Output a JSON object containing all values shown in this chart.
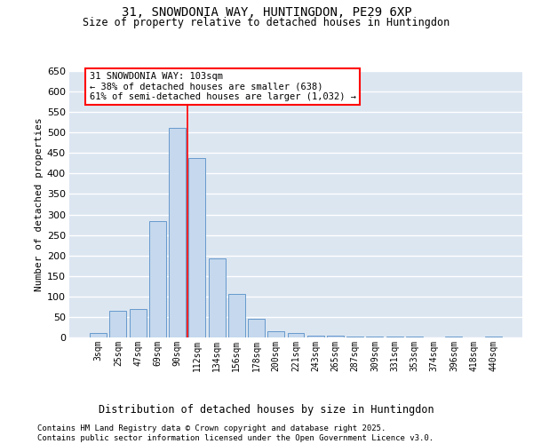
{
  "title": "31, SNOWDONIA WAY, HUNTINGDON, PE29 6XP",
  "subtitle": "Size of property relative to detached houses in Huntingdon",
  "xlabel": "Distribution of detached houses by size in Huntingdon",
  "ylabel": "Number of detached properties",
  "bar_color": "#c5d8ed",
  "bar_edge_color": "#6699cc",
  "background_color": "#dce6f1",
  "grid_color": "#ffffff",
  "categories": [
    "3sqm",
    "25sqm",
    "47sqm",
    "69sqm",
    "90sqm",
    "112sqm",
    "134sqm",
    "156sqm",
    "178sqm",
    "200sqm",
    "221sqm",
    "243sqm",
    "265sqm",
    "287sqm",
    "309sqm",
    "331sqm",
    "353sqm",
    "374sqm",
    "396sqm",
    "418sqm",
    "440sqm"
  ],
  "values": [
    10,
    65,
    70,
    283,
    512,
    437,
    193,
    107,
    45,
    16,
    10,
    5,
    5,
    3,
    2,
    2,
    2,
    1,
    3,
    1,
    2
  ],
  "ylim": [
    0,
    650
  ],
  "yticks": [
    0,
    50,
    100,
    150,
    200,
    250,
    300,
    350,
    400,
    450,
    500,
    550,
    600,
    650
  ],
  "vline_after_index": 4,
  "annotation_text": "31 SNOWDONIA WAY: 103sqm\n← 38% of detached houses are smaller (638)\n61% of semi-detached houses are larger (1,032) →",
  "footer_line1": "Contains HM Land Registry data © Crown copyright and database right 2025.",
  "footer_line2": "Contains public sector information licensed under the Open Government Licence v3.0."
}
